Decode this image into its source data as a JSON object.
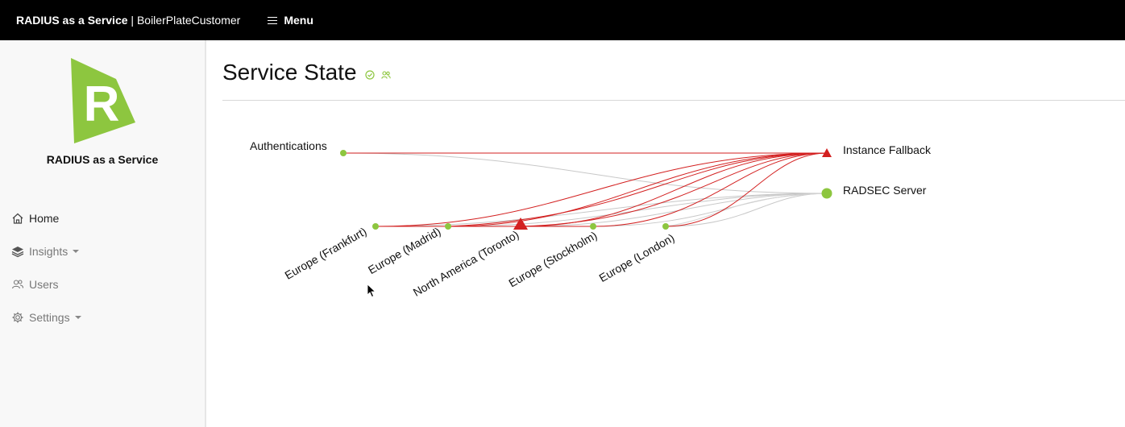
{
  "header": {
    "brand_bold": "RADIUS as a Service",
    "brand_rest": " | BoilerPlateCustomer",
    "menu_label": "Menu"
  },
  "sidebar": {
    "logo_letter": "R",
    "app_name": "RADIUS as a Service",
    "items": [
      {
        "label": "Home",
        "icon": "home-icon"
      },
      {
        "label": "Insights",
        "icon": "layers-icon",
        "has_caret": true
      },
      {
        "label": "Users",
        "icon": "users-icon"
      },
      {
        "label": "Settings",
        "icon": "gear-icon",
        "has_caret": true
      }
    ]
  },
  "main": {
    "title": "Service State"
  },
  "colors": {
    "accent_green": "#8dc63f",
    "error_red": "#d32020",
    "link_gray": "#c8c8c8"
  },
  "graph": {
    "sources": [
      {
        "label": "Authentications",
        "status": "ok"
      }
    ],
    "targets": [
      {
        "label": "Instance Fallback",
        "status": "error"
      },
      {
        "label": "RADSEC Server",
        "status": "ok"
      }
    ],
    "regions": [
      {
        "label": "Europe (Frankfurt)",
        "status": "ok"
      },
      {
        "label": "Europe (Madrid)",
        "status": "ok"
      },
      {
        "label": "North America (Toronto)",
        "status": "error"
      },
      {
        "label": "Europe (Stockholm)",
        "status": "ok"
      },
      {
        "label": "Europe (London)",
        "status": "ok"
      }
    ]
  }
}
